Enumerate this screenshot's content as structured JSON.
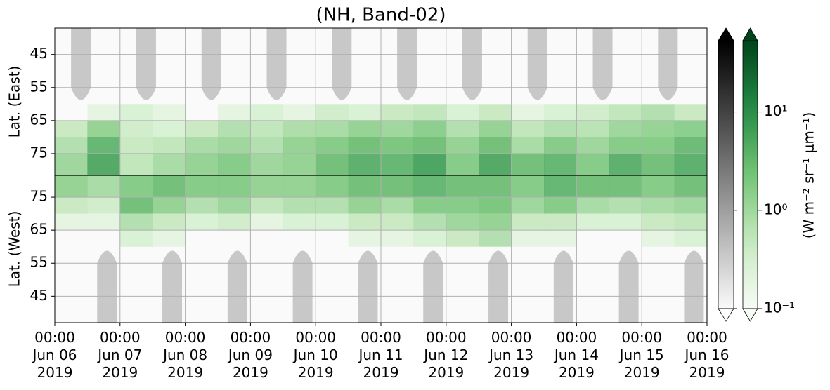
{
  "chart_data": {
    "type": "heatmap",
    "title": "(NH, Band-02)",
    "ylabel_east": "Lat. (East)",
    "ylabel_west": "Lat. (West)",
    "ylim_east": [
      37,
      81.6
    ],
    "ylim_west": [
      81.6,
      37
    ],
    "yticks_east": [
      45,
      55,
      65,
      75
    ],
    "yticks_west": [
      75,
      65,
      55,
      45
    ],
    "xlim": [
      "2019-06-06T00:00",
      "2019-06-16T00:00"
    ],
    "xticks": [
      {
        "value": "2019-06-06T00:00",
        "label": "00:00\nJun 06\n2019"
      },
      {
        "value": "2019-06-07T00:00",
        "label": "00:00\nJun 07\n2019"
      },
      {
        "value": "2019-06-08T00:00",
        "label": "00:00\nJun 08\n2019"
      },
      {
        "value": "2019-06-09T00:00",
        "label": "00:00\nJun 09\n2019"
      },
      {
        "value": "2019-06-10T00:00",
        "label": "00:00\nJun 10\n2019"
      },
      {
        "value": "2019-06-11T00:00",
        "label": "00:00\nJun 11\n2019"
      },
      {
        "value": "2019-06-12T00:00",
        "label": "00:00\nJun 12\n2019"
      },
      {
        "value": "2019-06-13T00:00",
        "label": "00:00\nJun 13\n2019"
      },
      {
        "value": "2019-06-14T00:00",
        "label": "00:00\nJun 14\n2019"
      },
      {
        "value": "2019-06-15T00:00",
        "label": "00:00\nJun 15\n2019"
      },
      {
        "value": "2019-06-16T00:00",
        "label": "00:00\nJun 16\n2019"
      }
    ],
    "grid": true,
    "east_bins": [
      60,
      65,
      70,
      75,
      81.6
    ],
    "west_bins": [
      81.6,
      75,
      70,
      65,
      60
    ],
    "z_east": [
      [
        0,
        0.2,
        0.3,
        0.2,
        0,
        0.2,
        0.3,
        0.2,
        0.4,
        0.3,
        0.5,
        0.6,
        0.3,
        0.5,
        0.2,
        0.3,
        0.4,
        0.6,
        0.8,
        0.5
      ],
      [
        0.5,
        1.5,
        0.4,
        0.3,
        0.5,
        0.8,
        0.6,
        0.9,
        1,
        1.5,
        1.2,
        1.8,
        0.8,
        1.5,
        0.6,
        0.8,
        0.7,
        1.2,
        1.5,
        1.8
      ],
      [
        0.8,
        4,
        0.5,
        0.6,
        1,
        1.2,
        0.8,
        1.5,
        2,
        3,
        2.5,
        3,
        1.5,
        3,
        1,
        2,
        1.2,
        2,
        2,
        3.5
      ],
      [
        1.2,
        6,
        0.6,
        1,
        1.5,
        2,
        1.2,
        1.5,
        3,
        5,
        4,
        7,
        2,
        6,
        3,
        4,
        2,
        5,
        3,
        5
      ]
    ],
    "z_west": [
      [
        1.5,
        1,
        2,
        3,
        2,
        2,
        1.5,
        1.5,
        2,
        3,
        3,
        4,
        3,
        3,
        2,
        4,
        3,
        3,
        2,
        3
      ],
      [
        0.5,
        0.4,
        3,
        1.5,
        0.8,
        1.2,
        0.6,
        0.8,
        0.8,
        1.5,
        1,
        2,
        2,
        2.5,
        1.2,
        2,
        1,
        0.8,
        1,
        1.2
      ],
      [
        0.2,
        0.2,
        0.8,
        0.5,
        0.3,
        0.4,
        0.2,
        0.3,
        0.3,
        0.5,
        0.5,
        0.8,
        1.2,
        1.5,
        0.5,
        0.5,
        0.3,
        0.3,
        0.5,
        0.6
      ],
      [
        0,
        0,
        0.3,
        0.2,
        0,
        0,
        0,
        0,
        0,
        0.2,
        0.2,
        0.3,
        0.5,
        0.8,
        0.2,
        0.2,
        0,
        0,
        0.2,
        0.3
      ]
    ],
    "log_scale": true,
    "clim": [
      0.1,
      53
    ],
    "colorbar_ticks": [
      {
        "value": 0.1,
        "label": "10⁻¹"
      },
      {
        "value": 1,
        "label": "10⁰"
      },
      {
        "value": 10,
        "label": "10¹"
      }
    ],
    "colorbar_label": "(W m⁻² sr⁻¹ μm⁻¹)"
  }
}
